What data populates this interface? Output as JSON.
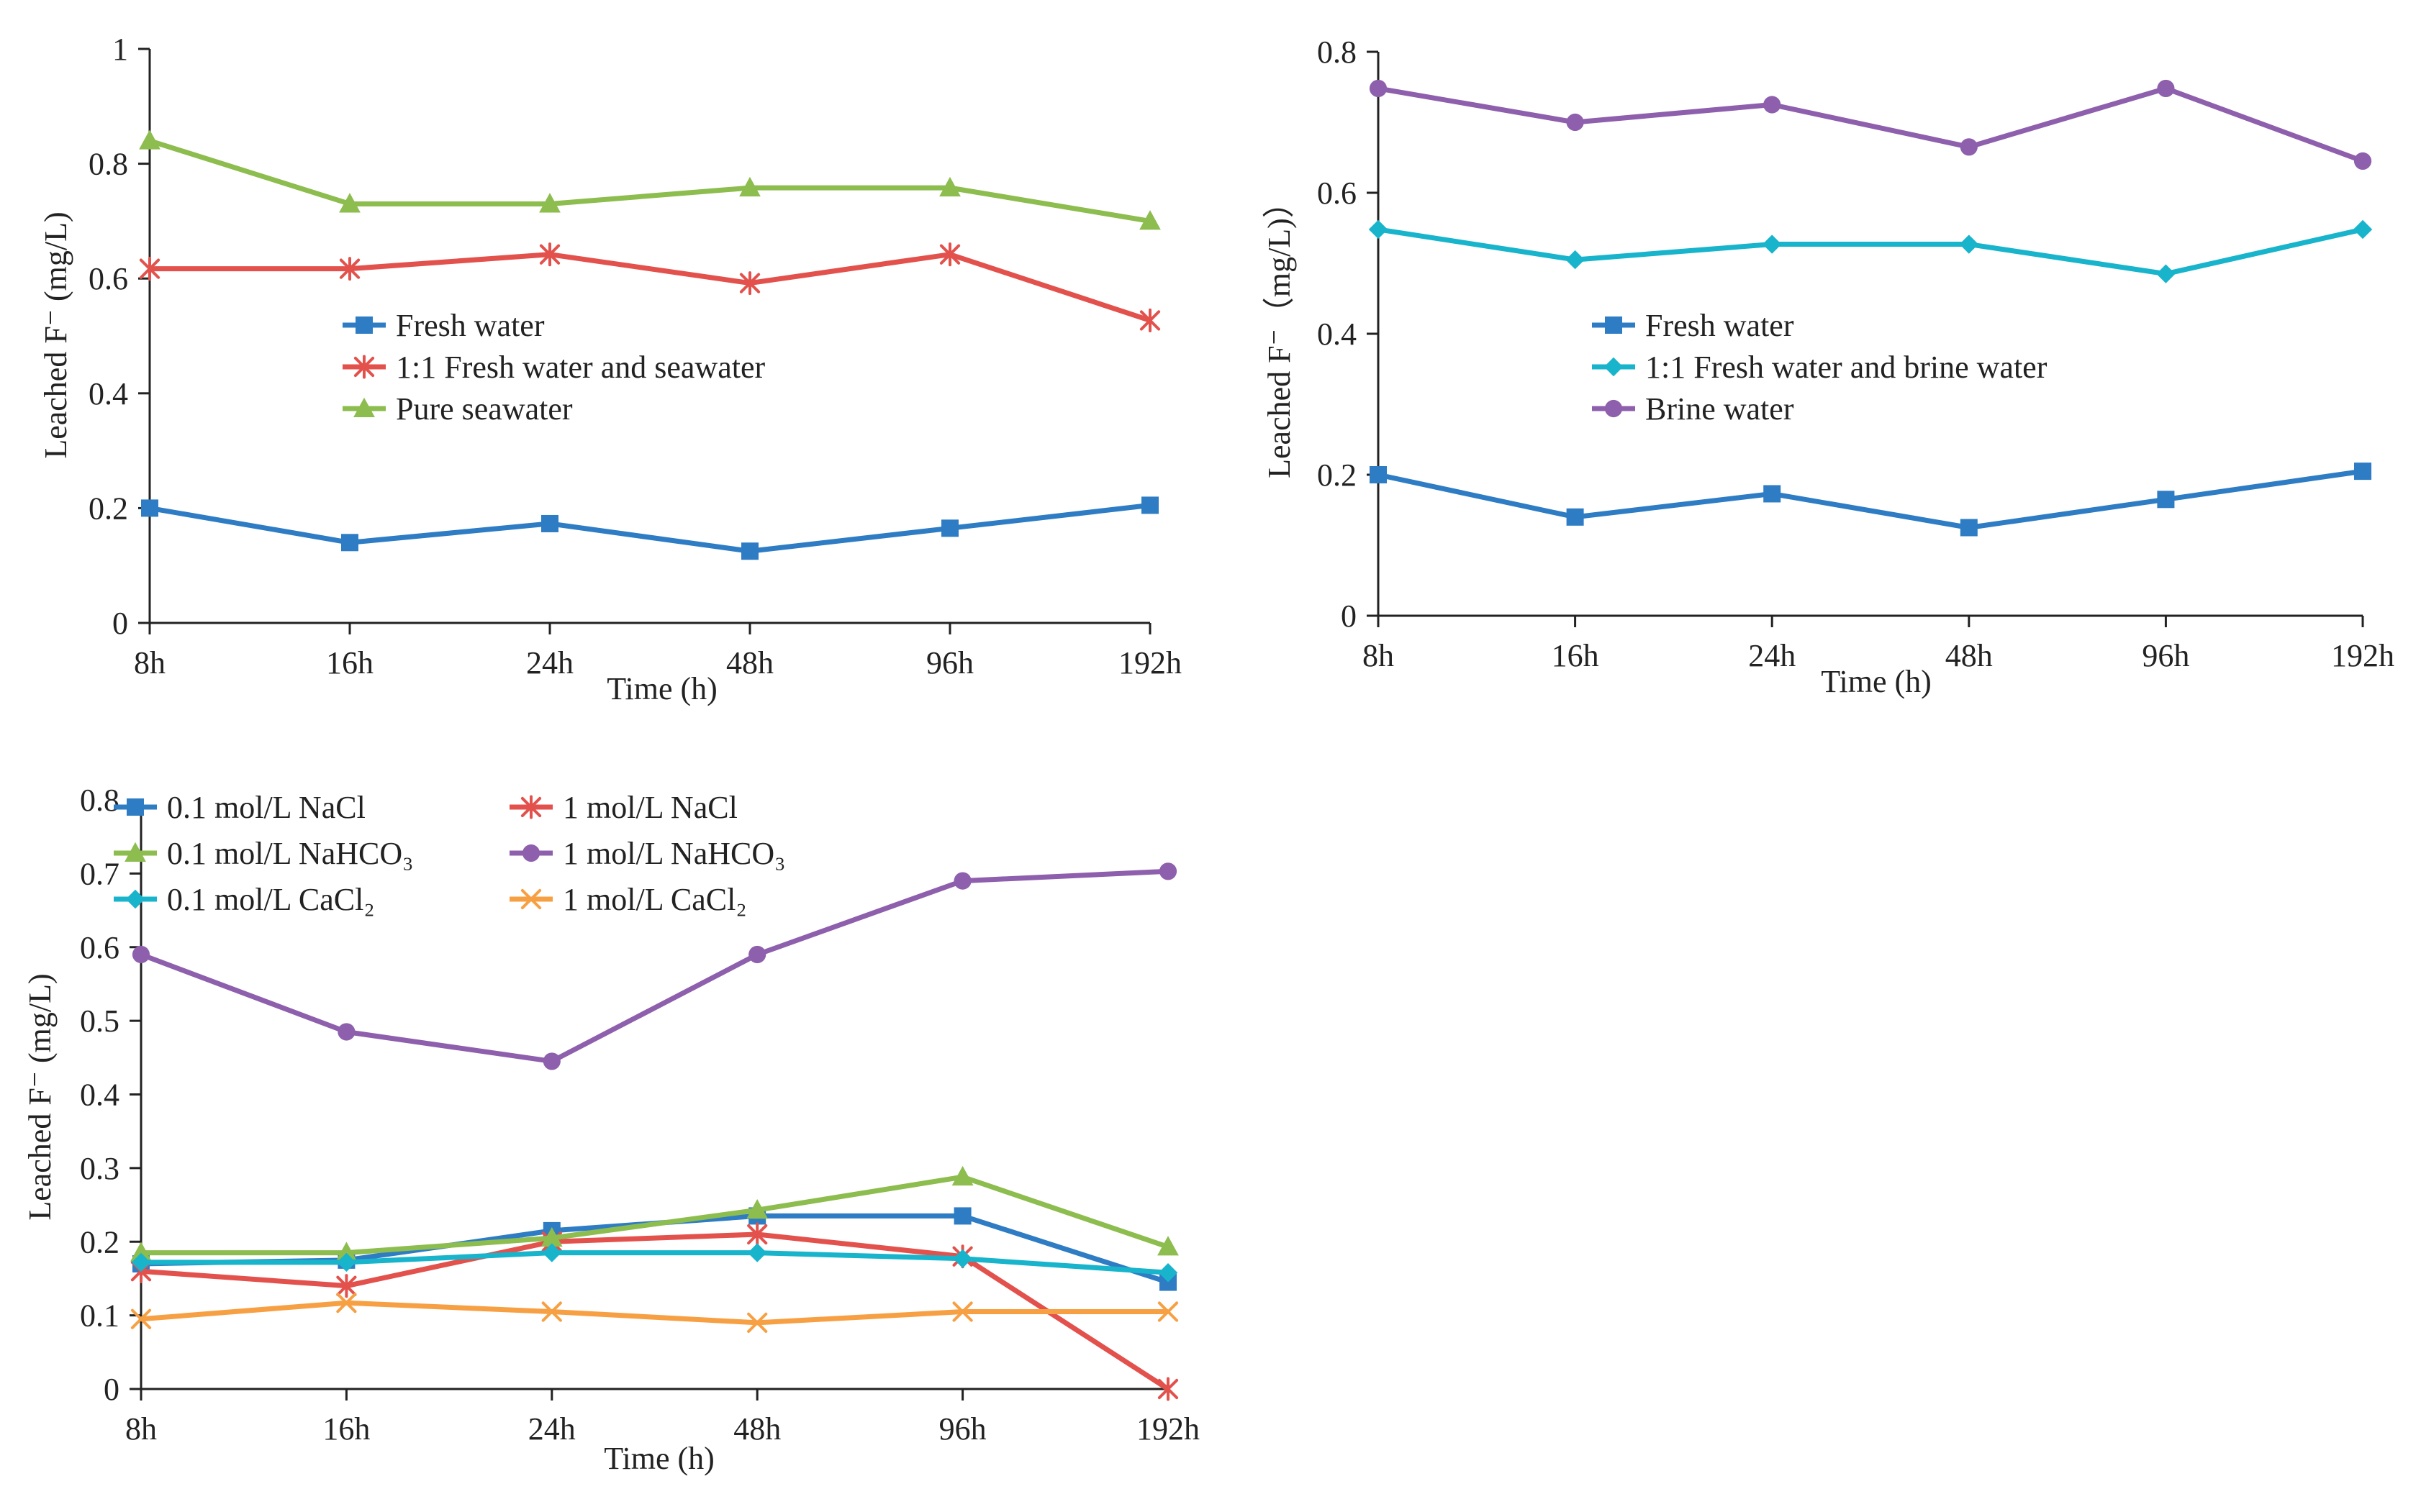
{
  "chart_data": [
    {
      "type": "line",
      "categories": [
        "8h",
        "16h",
        "24h",
        "48h",
        "96h",
        "192h"
      ],
      "xlabel": "Time (h)",
      "ylabel": "Leached F⁻ (mg/L)",
      "ylim": [
        0,
        1
      ],
      "yticks": [
        0,
        0.2,
        0.4,
        0.6,
        0.8,
        1
      ],
      "ytick_labels": [
        "0",
        "0.2",
        "0.4",
        "0.6",
        "0.8",
        "1"
      ],
      "legend_position": "center",
      "series": [
        {
          "name": "Fresh water",
          "values": [
            0.2,
            0.14,
            0.173,
            0.125,
            0.165,
            0.205
          ],
          "color": "#2e7cc4",
          "marker": "square"
        },
        {
          "name": "1:1 Fresh water and seawater",
          "values": [
            0.617,
            0.617,
            0.642,
            0.592,
            0.642,
            0.527
          ],
          "color": "#e3514c",
          "marker": "star"
        },
        {
          "name": "Pure seawater",
          "values": [
            0.84,
            0.73,
            0.73,
            0.758,
            0.758,
            0.7
          ],
          "color": "#8cbd4e",
          "marker": "triangle"
        }
      ]
    },
    {
      "type": "line",
      "categories": [
        "8h",
        "16h",
        "24h",
        "48h",
        "96h",
        "192h"
      ],
      "xlabel": "Time (h)",
      "ylabel": "Leached F⁻（mg/L)）",
      "ylim": [
        0,
        0.8
      ],
      "yticks": [
        0,
        0.2,
        0.4,
        0.6,
        0.8
      ],
      "ytick_labels": [
        "0",
        "0.2",
        "0.4",
        "0.6",
        "0.8"
      ],
      "legend_position": "center",
      "series": [
        {
          "name": "Fresh water",
          "values": [
            0.2,
            0.14,
            0.173,
            0.125,
            0.165,
            0.205
          ],
          "color": "#2e7cc4",
          "marker": "square"
        },
        {
          "name": "1:1 Fresh water and brine water",
          "values": [
            0.548,
            0.505,
            0.527,
            0.527,
            0.485,
            0.548
          ],
          "color": "#18b4cc",
          "marker": "diamond"
        },
        {
          "name": "Brine water",
          "values": [
            0.748,
            0.7,
            0.725,
            0.665,
            0.748,
            0.645
          ],
          "color": "#8e5fac",
          "marker": "circle"
        }
      ]
    },
    {
      "type": "line",
      "categories": [
        "8h",
        "16h",
        "24h",
        "48h",
        "96h",
        "192h"
      ],
      "xlabel": "Time (h)",
      "ylabel": "Leached F⁻ (mg/L)",
      "ylim": [
        0,
        0.8
      ],
      "yticks": [
        0,
        0.1,
        0.2,
        0.3,
        0.4,
        0.5,
        0.6,
        0.7,
        0.8
      ],
      "ytick_labels": [
        "0",
        "0.1",
        "0.2",
        "0.3",
        "0.4",
        "0.5",
        "0.6",
        "0.7",
        "0.8"
      ],
      "legend_position": "top",
      "series": [
        {
          "name": "0.1 mol/L NaCl",
          "values": [
            0.17,
            0.175,
            0.215,
            0.235,
            0.235,
            0.145
          ],
          "color": "#2e7cc4",
          "marker": "square"
        },
        {
          "name": "1 mol/L NaCl",
          "values": [
            0.16,
            0.14,
            0.2,
            0.21,
            0.18,
            0.0
          ],
          "color": "#e3514c",
          "marker": "star"
        },
        {
          "name": "0.1 mol/L NaHCO₃",
          "values": [
            0.185,
            0.185,
            0.205,
            0.243,
            0.288,
            0.193
          ],
          "color": "#8cbd4e",
          "marker": "triangle"
        },
        {
          "name": "1 mol/L NaHCO₃",
          "values": [
            0.59,
            0.485,
            0.445,
            0.59,
            0.69,
            0.703
          ],
          "color": "#8e5fac",
          "marker": "circle"
        },
        {
          "name": "0.1 mol/L CaCl₂",
          "values": [
            0.172,
            0.172,
            0.185,
            0.185,
            0.177,
            0.158
          ],
          "color": "#18b4cc",
          "marker": "diamond"
        },
        {
          "name": "1 mol/L CaCl₂",
          "values": [
            0.095,
            0.117,
            0.105,
            0.09,
            0.105,
            0.105
          ],
          "color": "#f7a043",
          "marker": "x"
        }
      ]
    }
  ]
}
